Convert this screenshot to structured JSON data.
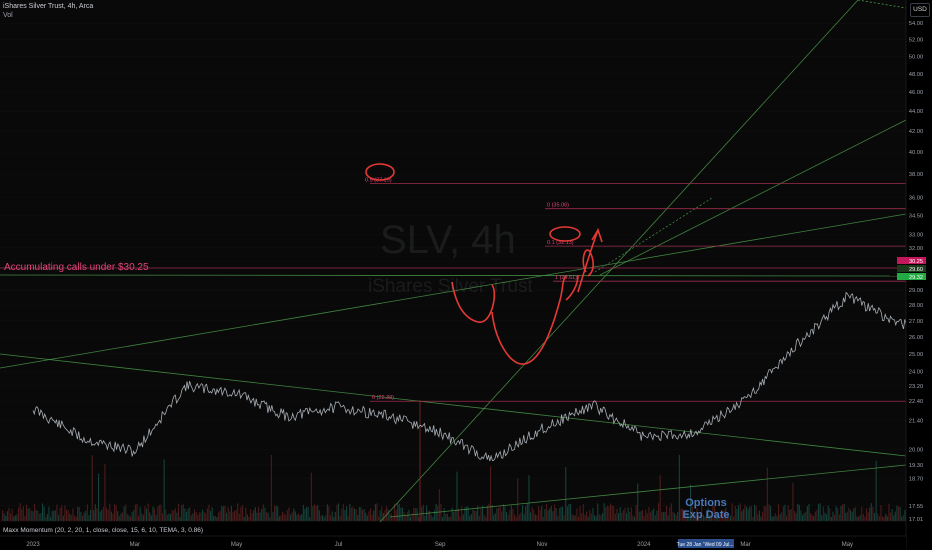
{
  "header": {
    "title": "iShares Silver Trust, 4h, Arca",
    "sub": "Vol"
  },
  "currency": "USD",
  "watermark": {
    "symbol": "SLV, 4h",
    "name": "iShares Silver Trust"
  },
  "annotation": "Accumulating calls under $30.25",
  "options_label": {
    "line1": "Options",
    "line2": "Exp Date"
  },
  "indicator": "Maxx Momentum (20, 2, 20, 1, close, close, 15, 6, 10, TEMA, 3, 0.86)",
  "chart_data": {
    "type": "line",
    "symbol": "SLV",
    "interval": "4h",
    "y_scale": "log",
    "ylim": [
      16.9,
      57.0
    ],
    "y_ticks": [
      17.01,
      17.55,
      18.7,
      19.3,
      20.0,
      21.4,
      22.4,
      23.2,
      24.0,
      25.0,
      26.0,
      27.0,
      28.0,
      29.0,
      30.0,
      31.0,
      32.0,
      33.0,
      34.5,
      36.0,
      38.0,
      40.0,
      42.0,
      44.0,
      46.0,
      48.0,
      50.0,
      52.0,
      54.0
    ],
    "x_ticks": [
      "2023",
      "Mar",
      "May",
      "Jul",
      "Sep",
      "Nov",
      "2024",
      "Mar",
      "May",
      "Jul",
      "Sep",
      "Nov",
      "2025",
      "Mar",
      "May"
    ],
    "x_cursor_labels": [
      "Tue 28 Jan '25",
      "Wed 09 Jul..."
    ],
    "price_labels": [
      "30.25",
      "29.60",
      "29.32"
    ],
    "price_series": [
      {
        "date": "2023-01",
        "price": 22.0
      },
      {
        "date": "2023-02",
        "price": 20.5
      },
      {
        "date": "2023-03",
        "price": 19.9
      },
      {
        "date": "2023-04",
        "price": 23.2
      },
      {
        "date": "2023-05",
        "price": 22.8
      },
      {
        "date": "2023-06",
        "price": 21.6
      },
      {
        "date": "2023-07",
        "price": 22.1
      },
      {
        "date": "2023-08",
        "price": 21.6
      },
      {
        "date": "2023-09",
        "price": 20.8
      },
      {
        "date": "2023-10",
        "price": 19.5
      },
      {
        "date": "2023-11",
        "price": 21.0
      },
      {
        "date": "2023-12",
        "price": 22.2
      },
      {
        "date": "2024-01",
        "price": 20.6
      },
      {
        "date": "2024-02",
        "price": 20.8
      },
      {
        "date": "2024-03",
        "price": 22.5
      },
      {
        "date": "2024-04",
        "price": 25.5
      },
      {
        "date": "2024-05",
        "price": 28.6
      },
      {
        "date": "2024-06",
        "price": 26.8
      },
      {
        "date": "2024-07",
        "price": 27.1
      },
      {
        "date": "2024-08",
        "price": 24.5
      },
      {
        "date": "2024-09",
        "price": 27.3
      },
      {
        "date": "2024-10",
        "price": 30.3
      },
      {
        "date": "2024-10-25",
        "price": 29.3
      }
    ],
    "fib_levels": [
      {
        "label": "0.5 (37.19)",
        "price": 37.19
      },
      {
        "label": "0 (35.06)",
        "price": 35.06
      },
      {
        "label": "0.1 (32.13)",
        "price": 32.13
      },
      {
        "label": "1 (29.61)",
        "price": 29.61
      },
      {
        "label": "0 (22.39)",
        "price": 22.39
      }
    ],
    "options_expiry": "2025-05",
    "lower_pane": "volume",
    "colors": {
      "up": "#26a69a",
      "down": "#ef5350",
      "fib": "#9c2e4c",
      "trend": "#4a9a4a",
      "annotation": "#e0457b",
      "last_price": "#22aa44",
      "price_badge": "#c2185b"
    }
  }
}
